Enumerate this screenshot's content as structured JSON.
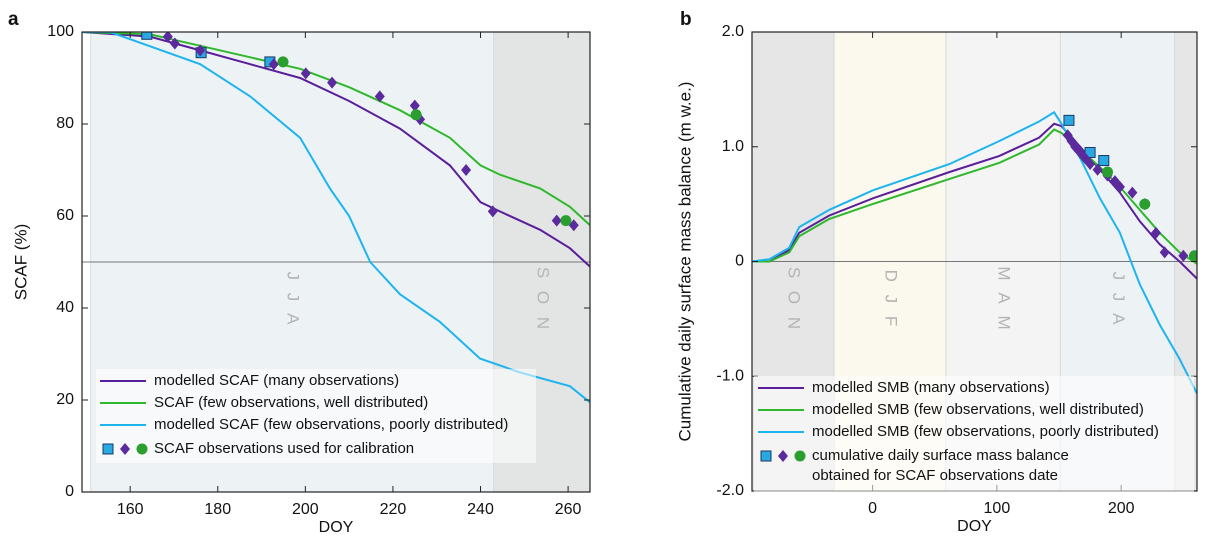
{
  "chart_data": [
    {
      "type": "line",
      "label": "a",
      "ylabel": "SCAF (%)",
      "xlabel": "DOY",
      "xlim": [
        149,
        265
      ],
      "ylim": [
        0,
        100
      ],
      "xticks": [
        160,
        180,
        200,
        220,
        240,
        260
      ],
      "yticks": [
        0,
        20,
        40,
        60,
        80,
        100
      ],
      "hline": 50,
      "seasons": [
        {
          "label": "J J A",
          "start": 151,
          "end": 243,
          "color": "#edf2f5"
        },
        {
          "label": "S O N",
          "start": 243,
          "end": 273,
          "color": "#e3e5e5"
        }
      ],
      "series": [
        {
          "name": "modelled SCAF (many observations)",
          "color": "#5a1e9a",
          "x": [
            149,
            164.5,
            176,
            187.4,
            198.8,
            210,
            221.6,
            233,
            240,
            244.4,
            253.6,
            260.4,
            265
          ],
          "values": [
            100,
            99,
            96,
            93,
            90,
            85,
            79,
            71,
            63,
            61,
            57,
            53,
            49
          ]
        },
        {
          "name": "SCAF (few observations, well distributed)",
          "color": "#2fb82b",
          "x": [
            149,
            164.5,
            176,
            187.4,
            198.8,
            210,
            221.6,
            233,
            240,
            244.4,
            253.6,
            260.4,
            265
          ],
          "values": [
            100,
            99.5,
            97,
            94.5,
            92,
            88,
            83,
            77,
            71,
            69,
            66,
            62,
            58
          ]
        },
        {
          "name": "modelled SCAF (few observations, poorly distributed)",
          "color": "#1eb4ee",
          "x": [
            149,
            155.4,
            176,
            187.4,
            198.8,
            205.6,
            210,
            214.8,
            221.6,
            230.7,
            239.9,
            249,
            260.4,
            265
          ],
          "values": [
            100,
            100,
            93,
            86,
            77,
            66,
            60,
            50,
            43,
            37,
            29,
            26,
            23,
            19.5
          ]
        }
      ],
      "observations": [
        {
          "marker": "square",
          "color": "#2aa8e2",
          "x": [
            163.8,
            176.2,
            191.9
          ],
          "values": [
            99.5,
            95.5,
            93.5
          ]
        },
        {
          "marker": "diamond",
          "color": "#5b2a9c",
          "x": [
            168.6,
            170.2,
            176,
            192.8,
            200.1,
            206.1,
            217,
            225,
            226.2,
            236.7,
            242.8,
            257.4,
            261.3
          ],
          "values": [
            99,
            97.5,
            96,
            93,
            91,
            89,
            86,
            84,
            81,
            70,
            61,
            59,
            58
          ]
        },
        {
          "marker": "circle",
          "color": "#2a9e2e",
          "x": [
            194.9,
            225.3,
            259.5
          ],
          "values": [
            93.5,
            82,
            59
          ]
        }
      ],
      "observation_legend": [
        "SCAF observations used for calibration"
      ]
    },
    {
      "type": "line",
      "label": "b",
      "ylabel": "Cumulative daily surface mass balance (m w.e.)",
      "xlabel": "DOY",
      "xlim": [
        -97,
        261
      ],
      "ylim": [
        -2,
        2
      ],
      "xticks": [
        0,
        100,
        200
      ],
      "yticks": [
        {
          "value": -2,
          "label": "-2.0"
        },
        {
          "value": -1,
          "label": "-1.0"
        },
        0,
        {
          "value": 1,
          "label": "1.0"
        },
        {
          "value": 2,
          "label": "2.0"
        }
      ],
      "hline": 0,
      "seasons": [
        {
          "label": "S O N",
          "start": -122,
          "end": -31,
          "color": "#e6e6e6"
        },
        {
          "label": "D J F",
          "start": -31,
          "end": 59,
          "color": "#fbf8ee"
        },
        {
          "label": "M A M",
          "start": 59,
          "end": 151,
          "color": "#f4f4f4"
        },
        {
          "label": "J J A",
          "start": 151,
          "end": 243,
          "color": "#edf2f5"
        },
        {
          "label": "",
          "start": 243,
          "end": 273,
          "color": "#e6e6e6"
        }
      ],
      "series": [
        {
          "name": "modelled SMB (many observations)",
          "color": "#5a1e9a",
          "x": [
            -97,
            -83,
            -67,
            -59,
            -35,
            0,
            62,
            102,
            134,
            146,
            152,
            167,
            183,
            199,
            215,
            231,
            247,
            261
          ],
          "values": [
            0,
            0,
            0.1,
            0.25,
            0.4,
            0.55,
            0.78,
            0.92,
            1.08,
            1.2,
            1.18,
            1.0,
            0.8,
            0.6,
            0.35,
            0.15,
            0,
            -0.15
          ]
        },
        {
          "name": "modelled SMB (few observations, well distributed)",
          "color": "#2fb82b",
          "x": [
            -97,
            -83,
            -67,
            -59,
            -35,
            0,
            62,
            102,
            134,
            146,
            152,
            167,
            183,
            199,
            215,
            231,
            247,
            261
          ],
          "values": [
            0,
            0,
            0.08,
            0.22,
            0.37,
            0.5,
            0.72,
            0.86,
            1.02,
            1.15,
            1.12,
            0.98,
            0.82,
            0.65,
            0.45,
            0.25,
            0.08,
            -0.02
          ]
        },
        {
          "name": "modelled SMB (few observations, poorly distributed)",
          "color": "#1eb4ee",
          "x": [
            -97,
            -83,
            -67,
            -59,
            -35,
            0,
            62,
            102,
            134,
            146,
            152,
            167,
            183,
            199,
            215,
            231,
            247,
            261
          ],
          "values": [
            0,
            0.02,
            0.12,
            0.3,
            0.45,
            0.62,
            0.85,
            1.05,
            1.22,
            1.3,
            1.2,
            0.9,
            0.55,
            0.25,
            -0.2,
            -0.55,
            -0.85,
            -1.15
          ]
        }
      ],
      "observations": [
        {
          "marker": "square",
          "color": "#2aa8e2",
          "x": [
            158,
            175,
            186
          ],
          "values": [
            1.23,
            0.95,
            0.88
          ]
        },
        {
          "marker": "diamond",
          "color": "#5b2a9c",
          "x": [
            157,
            160,
            163,
            167,
            171,
            175,
            181,
            189,
            195,
            199,
            209,
            219,
            228,
            235,
            250
          ],
          "values": [
            1.1,
            1.05,
            1.0,
            0.95,
            0.9,
            0.85,
            0.8,
            0.75,
            0.7,
            0.65,
            0.6,
            0.5,
            0.25,
            0.08,
            0.05
          ]
        },
        {
          "marker": "circle",
          "color": "#2a9e2e",
          "x": [
            189,
            219,
            259
          ],
          "values": [
            0.78,
            0.5,
            0.05
          ]
        }
      ],
      "observation_legend": [
        "cumulative daily surface mass balance",
        "obtained for SCAF observations date"
      ]
    }
  ]
}
